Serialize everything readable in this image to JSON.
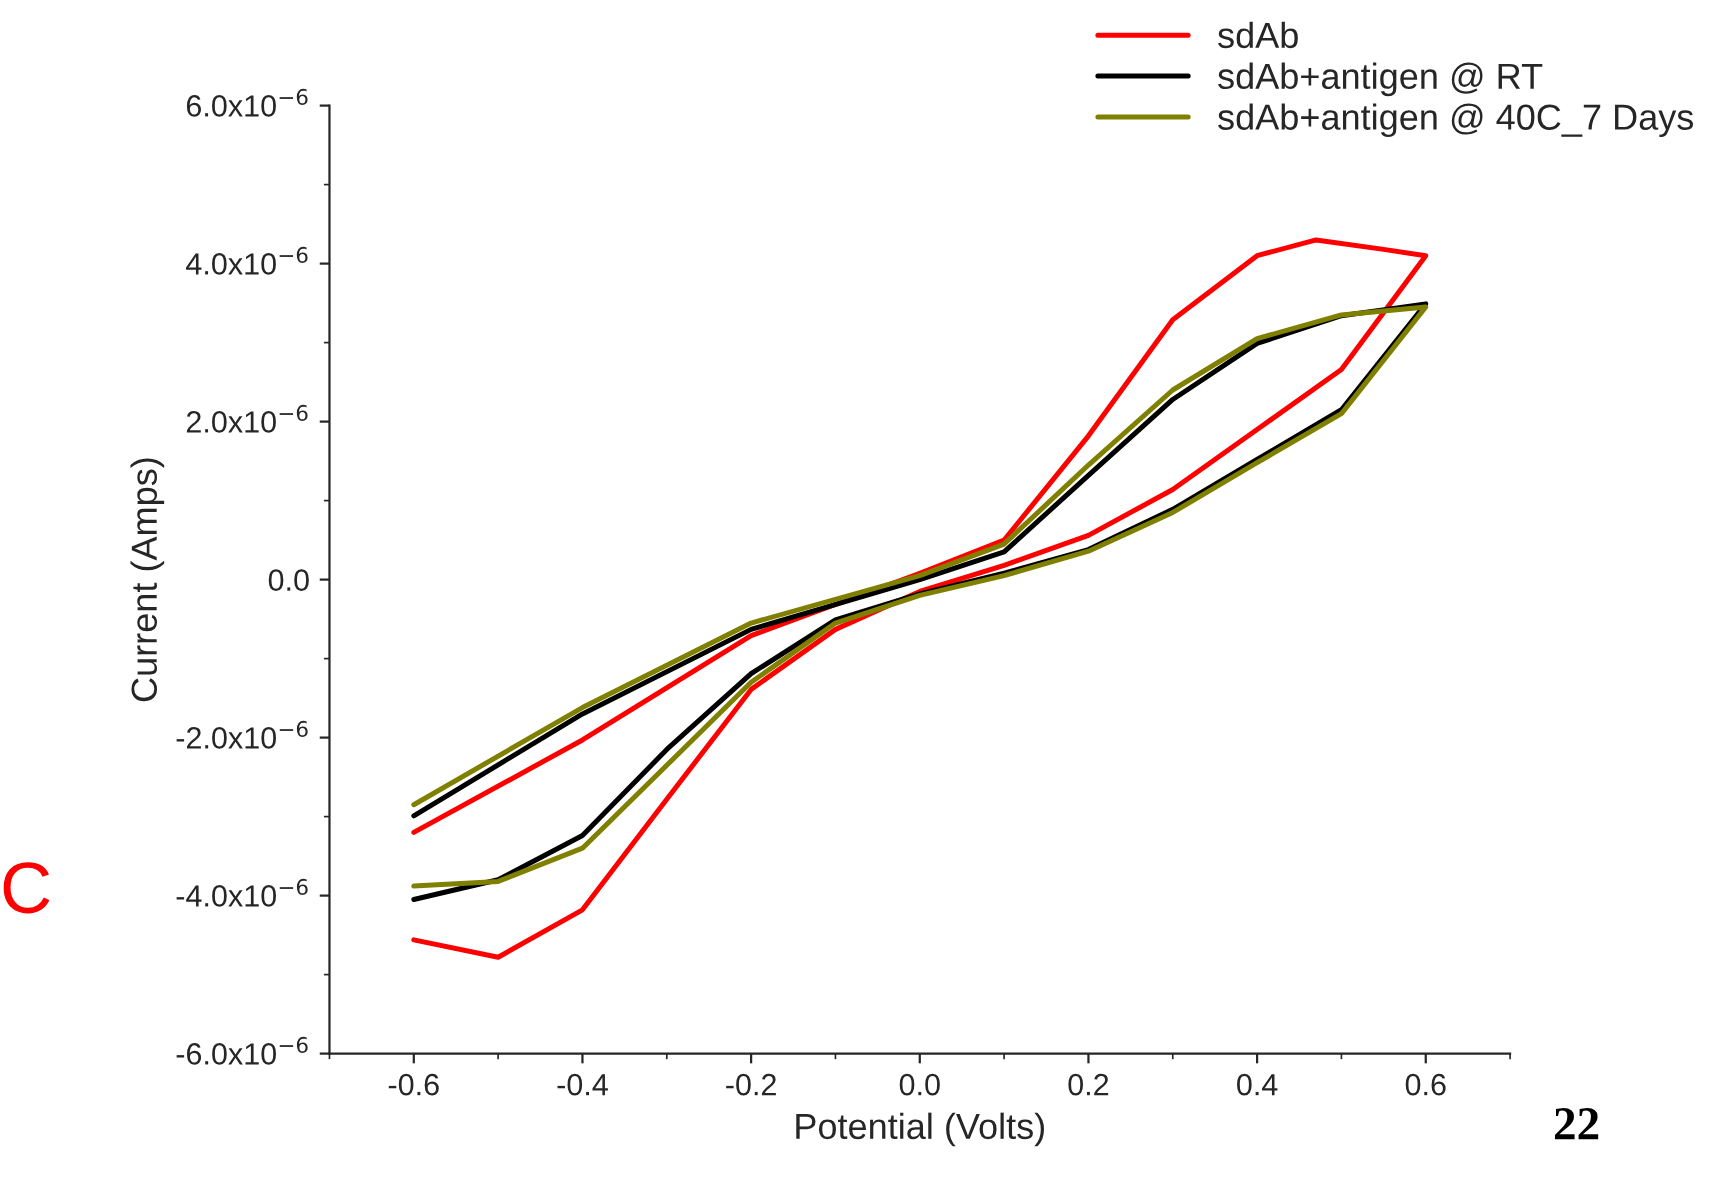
{
  "chart_data": {
    "type": "line",
    "xlabel": "Potential (Volts)",
    "ylabel": "Current (Amps)",
    "series": [
      {
        "name": "sdAb",
        "color": "#ff0000",
        "x": [
          -0.6,
          -0.4,
          -0.2,
          0.0,
          0.1,
          0.2,
          0.3,
          0.4,
          0.47,
          0.55,
          0.6,
          0.5,
          0.4,
          0.3,
          0.2,
          0.1,
          0.0,
          -0.1,
          -0.2,
          -0.3,
          -0.4,
          -0.5,
          -0.6
        ],
        "values": [
          -3.2e-06,
          -2.03e-06,
          -7.1e-07,
          8e-08,
          5e-07,
          1.82e-06,
          3.29e-06,
          4.1e-06,
          4.3e-06,
          4.18e-06,
          4.1e-06,
          2.66e-06,
          1.9e-06,
          1.14e-06,
          5.6e-07,
          1.8e-07,
          -1.5e-07,
          -6.3e-07,
          -1.39e-06,
          -2.78e-06,
          -4.18e-06,
          -4.78e-06,
          -4.56e-06
        ]
      },
      {
        "name": "sdAb+antigen @ RT",
        "color": "#000000",
        "x": [
          -0.6,
          -0.4,
          -0.2,
          0.0,
          0.1,
          0.2,
          0.3,
          0.4,
          0.5,
          0.6,
          0.5,
          0.4,
          0.3,
          0.2,
          0.1,
          0.0,
          -0.1,
          -0.2,
          -0.3,
          -0.4,
          -0.5,
          -0.6
        ],
        "values": [
          -2.99e-06,
          -1.7e-06,
          -6.3e-07,
          0.0,
          3.5e-07,
          1.32e-06,
          2.28e-06,
          2.99e-06,
          3.34e-06,
          3.49e-06,
          2.15e-06,
          1.52e-06,
          8.9e-07,
          3.8e-07,
          8e-08,
          -1.8e-07,
          -5.1e-07,
          -1.19e-06,
          -2.15e-06,
          -3.24e-06,
          -3.8e-06,
          -4.05e-06
        ]
      },
      {
        "name": "sdAb+antigen @ 40C_7 Days",
        "color": "#808000",
        "x": [
          -0.6,
          -0.4,
          -0.2,
          0.0,
          0.1,
          0.2,
          0.3,
          0.4,
          0.5,
          0.6,
          0.5,
          0.4,
          0.3,
          0.2,
          0.1,
          0.0,
          -0.1,
          -0.2,
          -0.3,
          -0.4,
          -0.5,
          -0.6
        ],
        "values": [
          -2.85e-06,
          -1.62e-06,
          -5.5e-07,
          5e-08,
          4.5e-07,
          1.45e-06,
          2.4e-06,
          3.05e-06,
          3.35e-06,
          3.45e-06,
          2.1e-06,
          1.48e-06,
          8.5e-07,
          3.6e-07,
          5e-08,
          -2e-07,
          -5.5e-07,
          -1.3e-06,
          -2.35e-06,
          -3.4e-06,
          -3.82e-06,
          -3.88e-06
        ]
      }
    ],
    "xlim": [
      -0.7,
      0.7
    ],
    "xticks": [
      -0.6,
      -0.4,
      -0.2,
      {
        "value": 0,
        "label": "0.0"
      },
      0.2,
      0.4,
      0.6
    ],
    "ylim": [
      -6e-06,
      6e-06
    ],
    "yticks": [
      {
        "value": -6e-06,
        "label": "-6.0x10$^{−6}$"
      },
      {
        "value": -4e-06,
        "label": "-4.0x10$^{−6}$"
      },
      {
        "value": -2e-06,
        "label": "-2.0x10$^{−6}$"
      },
      {
        "value": 0,
        "label": "0.0"
      },
      {
        "value": 2e-06,
        "label": "2.0x10$^{−6}$"
      },
      {
        "value": 4e-06,
        "label": "4.0x10$^{−6}$"
      },
      {
        "value": 6e-06,
        "label": "6.0x10$^{−6}$"
      }
    ],
    "grid": false,
    "legend": "top right",
    "marker": "none",
    "line_style": "solid",
    "annotations": [
      "22",
      "C"
    ]
  }
}
